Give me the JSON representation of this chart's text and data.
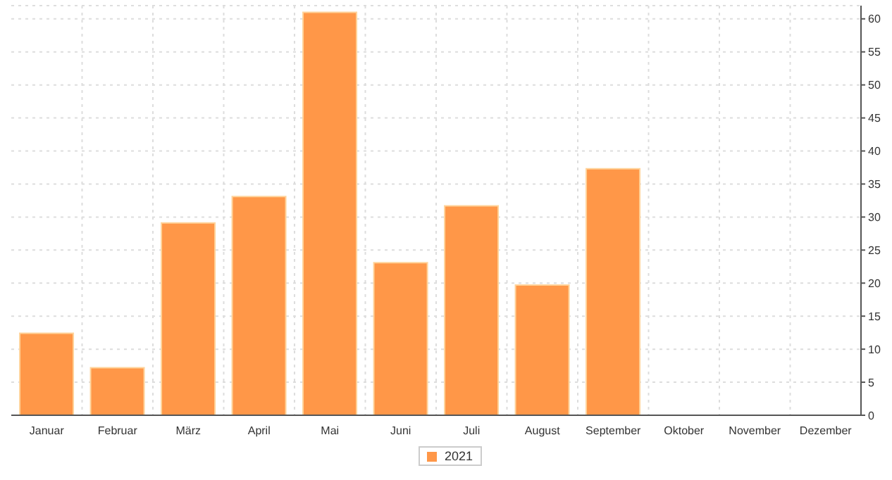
{
  "chart_data": {
    "type": "bar",
    "categories": [
      "Januar",
      "Februar",
      "März",
      "April",
      "Mai",
      "Juni",
      "Juli",
      "August",
      "September",
      "Oktober",
      "November",
      "Dezember"
    ],
    "series": [
      {
        "name": "2021",
        "color": "#ff9748",
        "values": [
          12.4,
          7.2,
          29.1,
          33.1,
          61,
          23.1,
          31.7,
          19.7,
          37.3,
          null,
          null,
          null
        ]
      }
    ],
    "ylim": [
      0,
      62
    ],
    "yticks": [
      0,
      5,
      10,
      15,
      20,
      25,
      30,
      35,
      40,
      45,
      50,
      55,
      60
    ],
    "grid": true,
    "legend": "bottom"
  }
}
